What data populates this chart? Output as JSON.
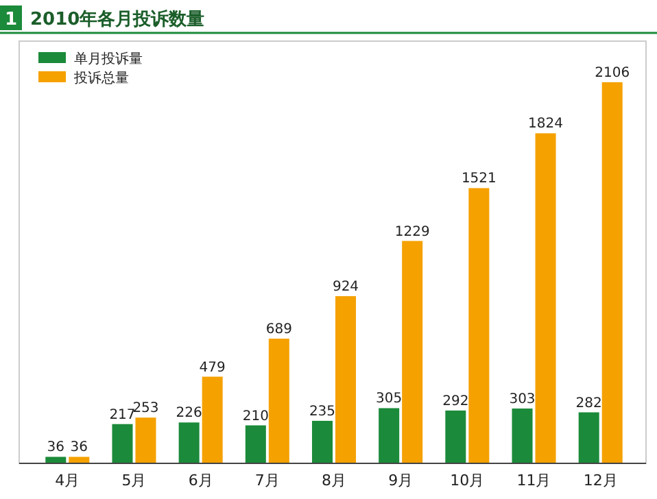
{
  "chart_data": {
    "type": "bar",
    "title": "2010年各月投诉数量",
    "annotations": [
      "1"
    ],
    "categories": [
      "4月",
      "5月",
      "6月",
      "7月",
      "8月",
      "9月",
      "10月",
      "11月",
      "12月"
    ],
    "series": [
      {
        "name": "单月投诉量",
        "color": "#1b8a3a",
        "values": [
          36,
          217,
          226,
          210,
          235,
          305,
          292,
          303,
          282
        ]
      },
      {
        "name": "投诉总量",
        "color": "#f5a100",
        "values": [
          36,
          253,
          479,
          689,
          924,
          1229,
          1521,
          1824,
          2106
        ]
      }
    ],
    "data_labels": true,
    "legend": "top left",
    "grid": false
  }
}
